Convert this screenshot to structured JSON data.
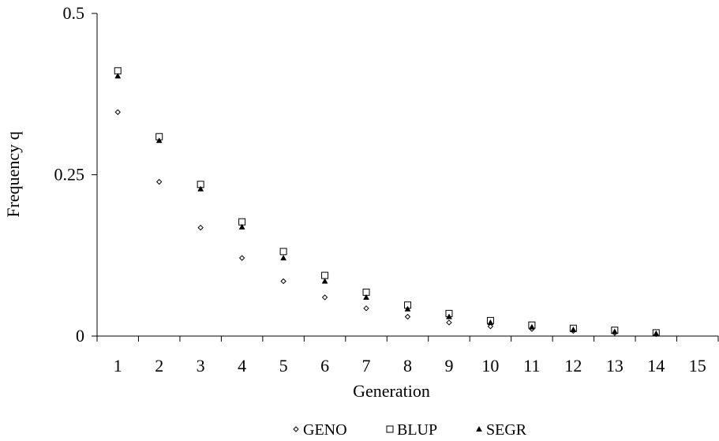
{
  "chart_data": {
    "type": "scatter",
    "xlabel": "Generation",
    "ylabel": "Frequency q",
    "x": [
      1,
      2,
      3,
      4,
      5,
      6,
      7,
      8,
      9,
      10,
      11,
      12,
      13,
      14
    ],
    "x_ticks": [
      "1",
      "2",
      "3",
      "4",
      "5",
      "6",
      "7",
      "8",
      "9",
      "10",
      "11",
      "12",
      "13",
      "14",
      "15"
    ],
    "y_ticks": [
      "0",
      "0.25",
      "0.5"
    ],
    "xlim": [
      0.5,
      15.5
    ],
    "ylim": [
      0,
      0.5
    ],
    "grid": false,
    "legend_position": "bottom",
    "series": [
      {
        "name": "GENO",
        "marker": "diamond",
        "values": [
          0.347,
          0.239,
          0.168,
          0.121,
          0.085,
          0.06,
          0.043,
          0.03,
          0.021,
          0.015,
          0.011,
          0.008,
          0.005,
          0.003
        ]
      },
      {
        "name": "BLUP",
        "marker": "square",
        "values": [
          0.411,
          0.309,
          0.235,
          0.177,
          0.131,
          0.094,
          0.068,
          0.048,
          0.035,
          0.024,
          0.017,
          0.012,
          0.009,
          0.005
        ]
      },
      {
        "name": "SEGR",
        "marker": "triangle",
        "values": [
          0.403,
          0.303,
          0.228,
          0.169,
          0.121,
          0.085,
          0.06,
          0.042,
          0.03,
          0.021,
          0.014,
          0.01,
          0.007,
          0.004
        ]
      }
    ]
  }
}
